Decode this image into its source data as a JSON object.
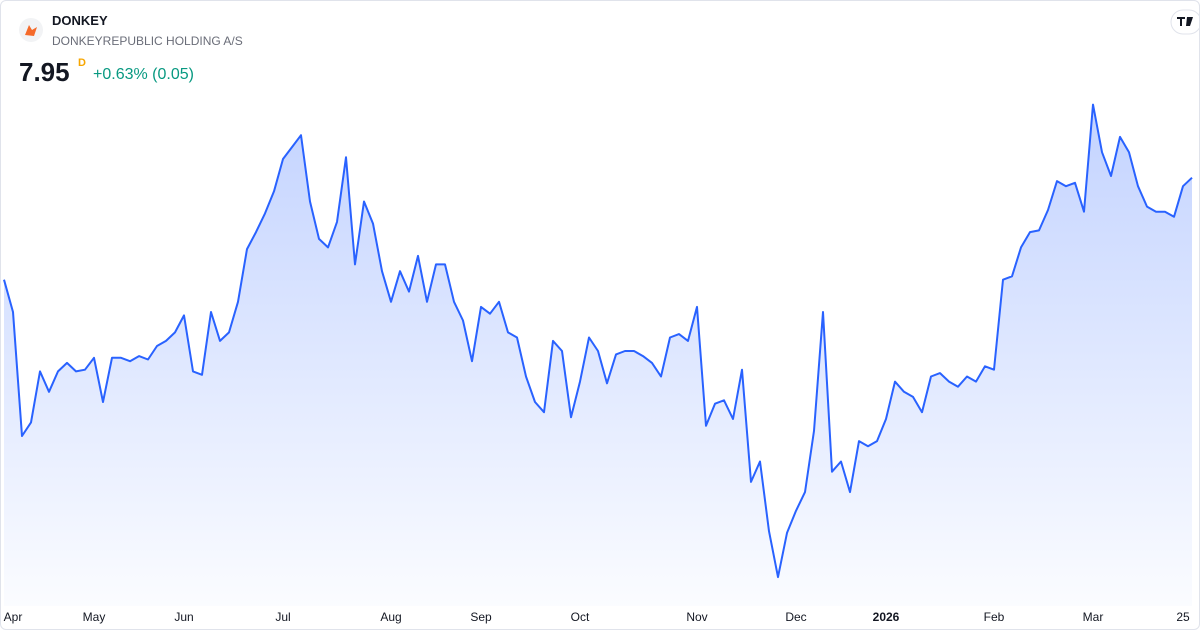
{
  "header": {
    "symbol": "DONKEY",
    "name": "DONKEYREPUBLIC HOLDING A/S",
    "price": "7.95",
    "resolution": "D",
    "change": "+0.63% (0.05)"
  },
  "chart_data": {
    "type": "area",
    "color": "#2962ff",
    "ylim": [
      5.43,
      8.46
    ],
    "categories": [
      null,
      "Apr",
      null,
      null,
      null,
      null,
      null,
      null,
      null,
      null,
      "May",
      null,
      null,
      null,
      null,
      null,
      null,
      null,
      null,
      null,
      "Jun",
      null,
      null,
      null,
      null,
      null,
      null,
      null,
      null,
      null,
      null,
      "Jul",
      null,
      null,
      null,
      null,
      null,
      null,
      null,
      null,
      null,
      null,
      null,
      "Aug",
      null,
      null,
      null,
      null,
      null,
      null,
      null,
      null,
      null,
      "Sep",
      null,
      null,
      null,
      null,
      null,
      null,
      null,
      null,
      null,
      null,
      "Oct",
      null,
      null,
      null,
      null,
      null,
      null,
      null,
      null,
      null,
      null,
      null,
      null,
      "Nov",
      null,
      null,
      null,
      null,
      null,
      null,
      null,
      null,
      null,
      null,
      "Dec",
      null,
      null,
      null,
      null,
      null,
      null,
      null,
      null,
      null,
      "2026",
      null,
      null,
      null,
      null,
      null,
      null,
      null,
      null,
      null,
      null,
      null,
      "Feb",
      null,
      null,
      null,
      null,
      null,
      null,
      null,
      null,
      null,
      null,
      "Mar",
      null,
      null,
      null,
      null,
      null,
      null,
      null,
      null,
      null,
      "25",
      null
    ],
    "values": [
      7.35,
      7.16,
      6.43,
      6.51,
      6.81,
      6.69,
      6.81,
      6.86,
      6.81,
      6.82,
      6.89,
      6.63,
      6.89,
      6.89,
      6.87,
      6.9,
      6.88,
      6.96,
      6.99,
      7.04,
      7.14,
      6.81,
      6.79,
      7.16,
      6.99,
      7.04,
      7.22,
      7.53,
      7.63,
      7.74,
      7.87,
      8.06,
      8.13,
      8.2,
      7.81,
      7.59,
      7.54,
      7.69,
      8.07,
      7.44,
      7.81,
      7.68,
      7.4,
      7.22,
      7.4,
      7.28,
      7.49,
      7.22,
      7.44,
      7.44,
      7.22,
      7.11,
      6.87,
      7.19,
      7.15,
      7.22,
      7.04,
      7.01,
      6.78,
      6.63,
      6.57,
      6.99,
      6.93,
      6.54,
      6.75,
      7.01,
      6.93,
      6.74,
      6.91,
      6.93,
      6.93,
      6.9,
      6.86,
      6.78,
      7.01,
      7.03,
      6.99,
      7.19,
      6.49,
      6.62,
      6.64,
      6.53,
      6.82,
      6.16,
      6.28,
      5.87,
      5.6,
      5.86,
      5.99,
      6.1,
      6.46,
      7.16,
      6.22,
      6.28,
      6.1,
      6.4,
      6.37,
      6.4,
      6.53,
      6.75,
      6.69,
      6.66,
      6.57,
      6.78,
      6.8,
      6.75,
      6.72,
      6.78,
      6.75,
      6.84,
      6.82,
      7.35,
      7.37,
      7.54,
      7.63,
      7.64,
      7.76,
      7.93,
      7.9,
      7.92,
      7.75,
      8.38,
      8.1,
      7.96,
      8.19,
      8.1,
      7.9,
      7.78,
      7.75,
      7.75,
      7.72,
      7.9,
      7.95
    ]
  }
}
